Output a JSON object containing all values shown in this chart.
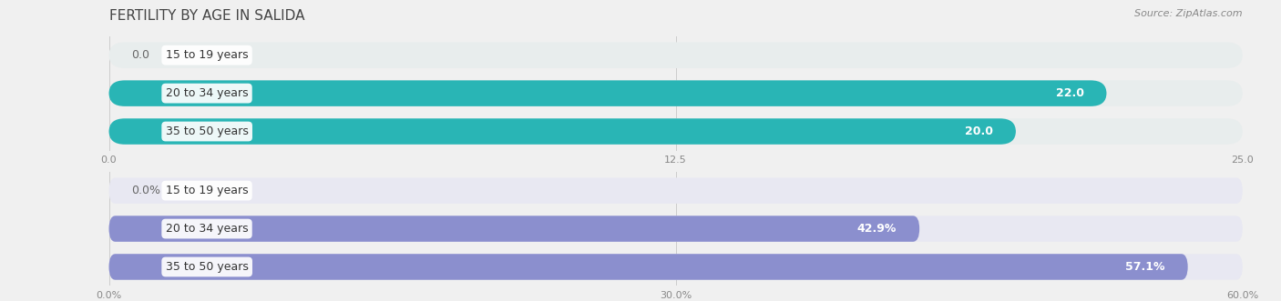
{
  "title": "FERTILITY BY AGE IN SALIDA",
  "source": "Source: ZipAtlas.com",
  "top_chart": {
    "categories": [
      "15 to 19 years",
      "20 to 34 years",
      "35 to 50 years"
    ],
    "values": [
      0.0,
      22.0,
      20.0
    ],
    "max_value": 25.0,
    "tick_values": [
      0.0,
      12.5,
      25.0
    ],
    "bar_color": "#29b5b5",
    "bar_bg_color": "#e8eded",
    "label_color_inside": "#ffffff",
    "label_color_outside": "#666666"
  },
  "bottom_chart": {
    "categories": [
      "15 to 19 years",
      "20 to 34 years",
      "35 to 50 years"
    ],
    "values": [
      0.0,
      42.9,
      57.1
    ],
    "max_value": 60.0,
    "tick_values": [
      0.0,
      30.0,
      60.0
    ],
    "bar_color": "#8b8fce",
    "bar_bg_color": "#e8e8f2",
    "label_color_inside": "#ffffff",
    "label_color_outside": "#666666"
  },
  "fig_bg_color": "#f0f0f0",
  "plot_bg_color": "#f0f0f0",
  "bar_height": 0.68,
  "bar_gap": 0.15,
  "title_fontsize": 11,
  "label_fontsize": 9,
  "tick_fontsize": 8,
  "category_fontsize": 9,
  "value_label_fontsize": 9
}
